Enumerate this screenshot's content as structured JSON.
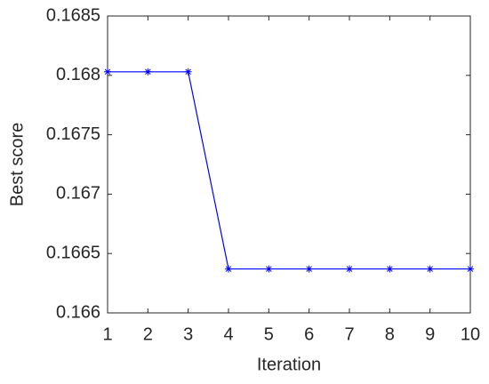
{
  "chart_data": {
    "type": "line",
    "xlabel": "Iteration",
    "ylabel": "Best score",
    "x": [
      1,
      2,
      3,
      4,
      5,
      6,
      7,
      8,
      9,
      10
    ],
    "series": [
      {
        "color": "#0000ff",
        "marker": "*",
        "values": [
          0.16803,
          0.16803,
          0.16803,
          0.16637,
          0.16637,
          0.16637,
          0.16637,
          0.16637,
          0.16637,
          0.16637
        ]
      }
    ],
    "xlim": [
      1,
      10
    ],
    "xticks": [
      1,
      2,
      3,
      4,
      5,
      6,
      7,
      8,
      9,
      10
    ],
    "ylim": [
      0.166,
      0.1685
    ],
    "yticks": [
      0.166,
      0.1665,
      0.167,
      0.1675,
      0.168,
      0.1685
    ],
    "grid": false
  }
}
